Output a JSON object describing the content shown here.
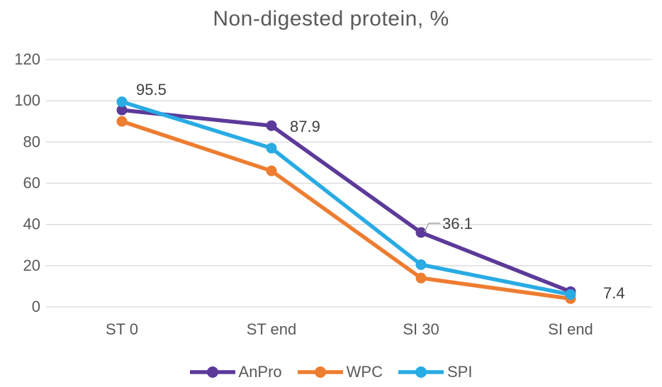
{
  "chart_data": {
    "type": "line",
    "title": "Non-digested protein, %",
    "categories": [
      "ST 0",
      "ST end",
      "SI 30",
      "SI end"
    ],
    "series": [
      {
        "name": "AnPro",
        "color": "#5C3A99",
        "values": [
          95.5,
          87.9,
          36.1,
          7.4
        ]
      },
      {
        "name": "WPC",
        "color": "#ED7D31",
        "values": [
          90,
          66,
          14,
          4
        ]
      },
      {
        "name": "SPI",
        "color": "#29ABE3",
        "values": [
          99.5,
          77,
          20.5,
          6
        ]
      }
    ],
    "data_labels": {
      "series": "AnPro",
      "values": [
        "95.5",
        "87.9",
        "36.1",
        "7.4"
      ]
    },
    "ylim": [
      0,
      120
    ],
    "yticks": [
      0,
      20,
      40,
      60,
      80,
      100,
      120
    ],
    "grid": true,
    "legend_position": "bottom"
  },
  "styles": {
    "grid_color": "#D9D9D9",
    "axis_text_color": "#595959",
    "data_label_color": "#404040",
    "title_color": "#595959",
    "leader_line_color": "#A6A6A6",
    "background_color": "#FFFFFF"
  }
}
